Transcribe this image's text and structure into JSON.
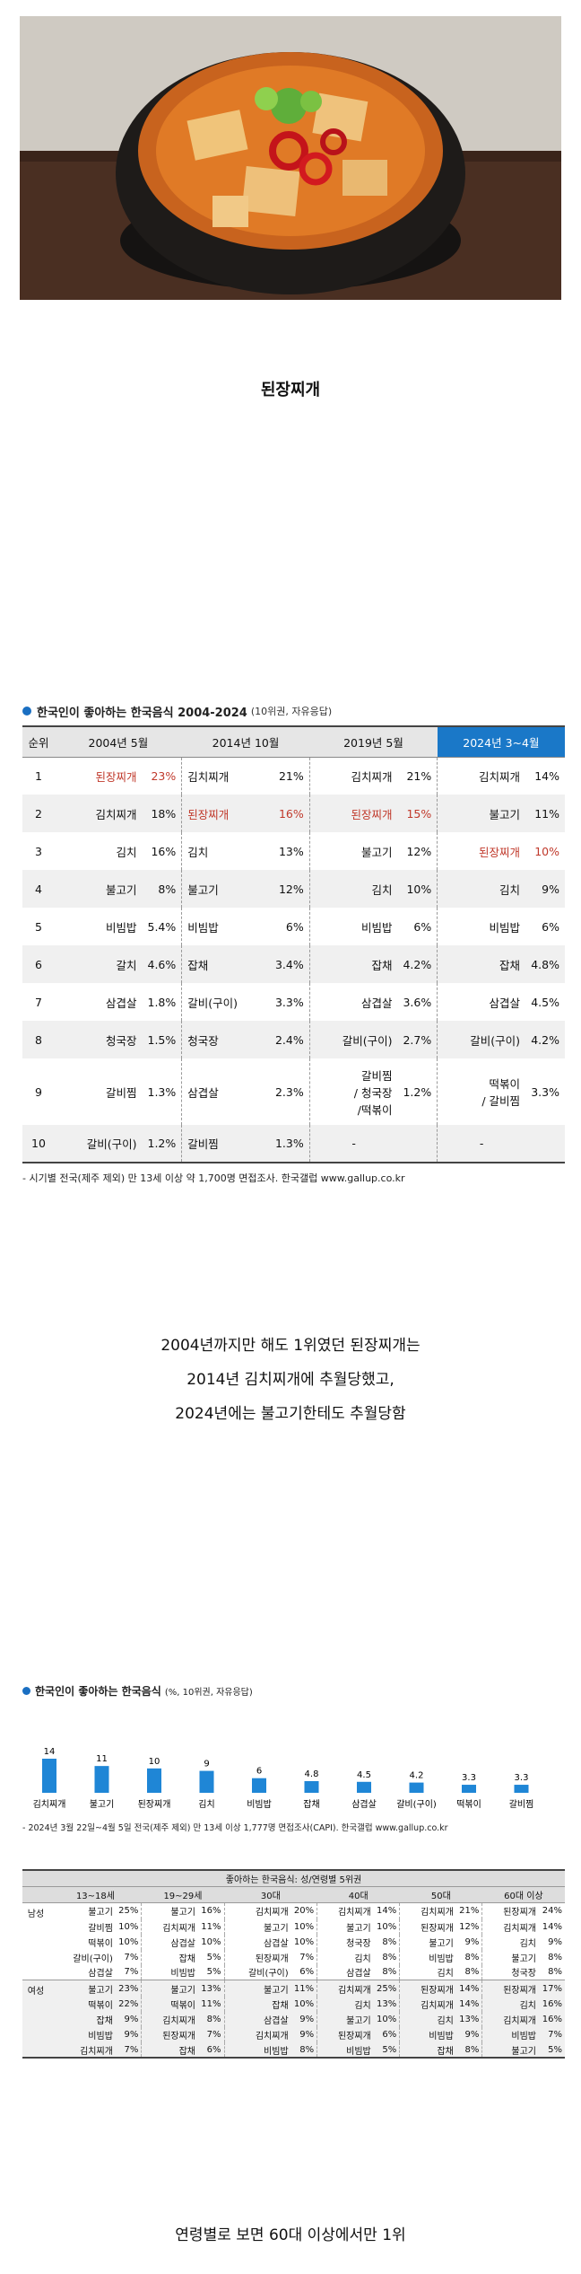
{
  "caption1": "된장찌개",
  "table1": {
    "title": "한국인이 좋아하는 한국음식 2004-2024",
    "subtitle": "(10위권, 자유응답)",
    "rank_header": "순위",
    "columns": [
      "2004년 5월",
      "2014년 10월",
      "2019년 5월",
      "2024년 3~4월"
    ],
    "rows": [
      {
        "rank": "1",
        "cells": [
          [
            "된장찌개",
            "23%"
          ],
          [
            "김치찌개",
            "21%"
          ],
          [
            "김치찌개",
            "21%"
          ],
          [
            "김치찌개",
            "14%"
          ]
        ]
      },
      {
        "rank": "2",
        "cells": [
          [
            "김치찌개",
            "18%"
          ],
          [
            "된장찌개",
            "16%"
          ],
          [
            "된장찌개",
            "15%"
          ],
          [
            "불고기",
            "11%"
          ]
        ]
      },
      {
        "rank": "3",
        "cells": [
          [
            "김치",
            "16%"
          ],
          [
            "김치",
            "13%"
          ],
          [
            "불고기",
            "12%"
          ],
          [
            "된장찌개",
            "10%"
          ]
        ]
      },
      {
        "rank": "4",
        "cells": [
          [
            "불고기",
            "8%"
          ],
          [
            "불고기",
            "12%"
          ],
          [
            "김치",
            "10%"
          ],
          [
            "김치",
            "9%"
          ]
        ]
      },
      {
        "rank": "5",
        "cells": [
          [
            "비빔밥",
            "5.4%"
          ],
          [
            "비빔밥",
            "6%"
          ],
          [
            "비빔밥",
            "6%"
          ],
          [
            "비빔밥",
            "6%"
          ]
        ]
      },
      {
        "rank": "6",
        "cells": [
          [
            "갈치",
            "4.6%"
          ],
          [
            "잡채",
            "3.4%"
          ],
          [
            "잡채",
            "4.2%"
          ],
          [
            "잡채",
            "4.8%"
          ]
        ]
      },
      {
        "rank": "7",
        "cells": [
          [
            "삼겹살",
            "1.8%"
          ],
          [
            "갈비(구이)",
            "3.3%"
          ],
          [
            "삼겹살",
            "3.6%"
          ],
          [
            "삼겹살",
            "4.5%"
          ]
        ]
      },
      {
        "rank": "8",
        "cells": [
          [
            "청국장",
            "1.5%"
          ],
          [
            "청국장",
            "2.4%"
          ],
          [
            "갈비(구이)",
            "2.7%"
          ],
          [
            "갈비(구이)",
            "4.2%"
          ]
        ]
      },
      {
        "rank": "9",
        "cells": [
          [
            "갈비찜",
            "1.3%"
          ],
          [
            "삼겹살",
            "2.3%"
          ],
          [
            "갈비찜\n/ 청국장\n/떡볶이",
            "1.2%"
          ],
          [
            "떡볶이\n/ 갈비찜",
            "3.3%"
          ]
        ]
      },
      {
        "rank": "10",
        "cells": [
          [
            "갈비(구이)",
            "1.2%"
          ],
          [
            "갈비찜",
            "1.3%"
          ],
          [
            "-",
            ""
          ],
          [
            "-",
            ""
          ]
        ]
      }
    ],
    "note": "- 시기별 전국(제주 제외) 만 13세 이상 약 1,700명 면접조사. 한국갤럽 www.gallup.co.kr",
    "highlight_color": "#1a78c8",
    "hot_color": "#c0392b"
  },
  "caption2": {
    "line1": "2004년까지만 해도 1위였던 된장찌개는",
    "line2": "2014년 김치찌개에 추월당했고,",
    "line3": "2024년에는 불고기한테도 추월당함"
  },
  "chart_data": {
    "type": "bar",
    "title": "한국인이 좋아하는 한국음식",
    "subtitle": "(%, 10위권, 자유응답)",
    "categories": [
      "김치찌개",
      "불고기",
      "된장찌개",
      "김치",
      "비빔밥",
      "잡채",
      "삼겹살",
      "갈비(구이)",
      "떡볶이",
      "갈비찜"
    ],
    "values": [
      14,
      11,
      10,
      9,
      6,
      4.8,
      4.5,
      4.2,
      3.3,
      3.3
    ],
    "ylim": [
      0,
      14
    ],
    "bar_color": "#1f86d6",
    "note": "- 2024년 3월 22일~4월 5일 전국(제주 제외) 만 13세 이상 1,777명 면접조사(CAPI). 한국갤럽 www.gallup.co.kr"
  },
  "table2": {
    "title": "좋아하는 한국음식: 성/연령별 5위권",
    "columns": [
      "13~18세",
      "19~29세",
      "30대",
      "40대",
      "50대",
      "60대 이상"
    ],
    "male_label": "남성",
    "female_label": "여성",
    "male": [
      [
        [
          "불고기",
          "25%"
        ],
        [
          "불고기",
          "16%"
        ],
        [
          "김치찌개",
          "20%"
        ],
        [
          "김치찌개",
          "14%"
        ],
        [
          "김치찌개",
          "21%"
        ],
        [
          "된장찌개",
          "24%"
        ]
      ],
      [
        [
          "갈비찜",
          "10%"
        ],
        [
          "김치찌개",
          "11%"
        ],
        [
          "불고기",
          "10%"
        ],
        [
          "불고기",
          "10%"
        ],
        [
          "된장찌개",
          "12%"
        ],
        [
          "김치찌개",
          "14%"
        ]
      ],
      [
        [
          "떡볶이",
          "10%"
        ],
        [
          "삼겹살",
          "10%"
        ],
        [
          "삼겹살",
          "10%"
        ],
        [
          "청국장",
          "8%"
        ],
        [
          "불고기",
          "9%"
        ],
        [
          "김치",
          "9%"
        ]
      ],
      [
        [
          "갈비(구이)",
          "7%"
        ],
        [
          "잡채",
          "5%"
        ],
        [
          "된장찌개",
          "7%"
        ],
        [
          "김치",
          "8%"
        ],
        [
          "비빔밥",
          "8%"
        ],
        [
          "불고기",
          "8%"
        ]
      ],
      [
        [
          "삼겹살",
          "7%"
        ],
        [
          "비빔밥",
          "5%"
        ],
        [
          "갈비(구이)",
          "6%"
        ],
        [
          "삼겹살",
          "8%"
        ],
        [
          "김치",
          "8%"
        ],
        [
          "청국장",
          "8%"
        ]
      ]
    ],
    "female": [
      [
        [
          "불고기",
          "23%"
        ],
        [
          "불고기",
          "13%"
        ],
        [
          "불고기",
          "11%"
        ],
        [
          "김치찌개",
          "25%"
        ],
        [
          "된장찌개",
          "14%"
        ],
        [
          "된장찌개",
          "17%"
        ]
      ],
      [
        [
          "떡볶이",
          "22%"
        ],
        [
          "떡볶이",
          "11%"
        ],
        [
          "잡채",
          "10%"
        ],
        [
          "김치",
          "13%"
        ],
        [
          "김치찌개",
          "14%"
        ],
        [
          "김치",
          "16%"
        ]
      ],
      [
        [
          "잡채",
          "9%"
        ],
        [
          "김치찌개",
          "8%"
        ],
        [
          "삼겹살",
          "9%"
        ],
        [
          "불고기",
          "10%"
        ],
        [
          "김치",
          "13%"
        ],
        [
          "김치찌개",
          "16%"
        ]
      ],
      [
        [
          "비빔밥",
          "9%"
        ],
        [
          "된장찌개",
          "7%"
        ],
        [
          "김치찌개",
          "9%"
        ],
        [
          "된장찌개",
          "6%"
        ],
        [
          "비빔밥",
          "9%"
        ],
        [
          "비빔밥",
          "7%"
        ]
      ],
      [
        [
          "김치찌개",
          "7%"
        ],
        [
          "잡채",
          "6%"
        ],
        [
          "비빔밥",
          "8%"
        ],
        [
          "비빔밥",
          "5%"
        ],
        [
          "잡채",
          "8%"
        ],
        [
          "불고기",
          "5%"
        ]
      ]
    ]
  },
  "caption3": "연령별로 보면 60대 이상에서만 1위"
}
